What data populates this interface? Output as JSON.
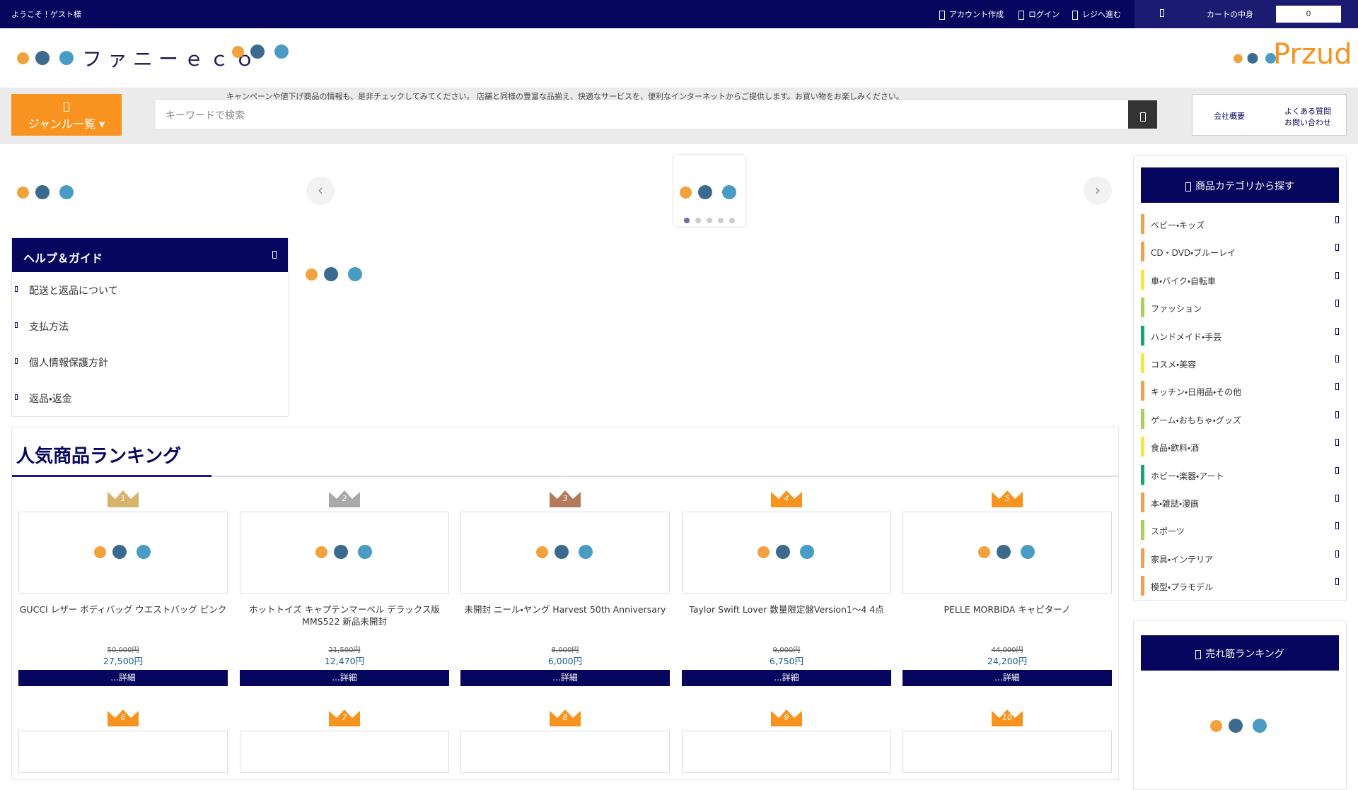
{
  "topbar": {
    "welcome": "ようこそ！ゲスト様",
    "links": [
      "アカウント作成",
      "ログイン",
      "レジへ進む"
    ],
    "cart_label": "カートの中身",
    "cart_count": "0"
  },
  "header": {
    "logo": "ファニーｅｃｏ",
    "brand": "Przud"
  },
  "notice": "キャンペーンや値下げ商品の情報も、是非チェックしてみてください。 店舗と同様の豊富な品揃え、快適なサービスを、便利なインターネットからご提供します。お買い物をお楽しみください。",
  "nav": {
    "genre": "ジャンル一覧",
    "search_placeholder": "キーワードで検索",
    "company": "会社概要",
    "faq": "よくある質問",
    "contact": "お問い合わせ"
  },
  "help": {
    "title": "ヘルプ＆ガイド",
    "items": [
      "配送と返品について",
      "支払方法",
      "個人情報保護方針",
      "返品・返金"
    ]
  },
  "ranking": {
    "title": "人気商品ランキング",
    "ranks": [
      "1",
      "2",
      "3",
      "4",
      "5",
      "6",
      "7",
      "8",
      "9",
      "10"
    ],
    "rank_colors": [
      "#d8b46a",
      "#a9a9a9",
      "#b5785a",
      "#f7931e",
      "#f7931e",
      "#f7931e",
      "#f7931e",
      "#f7931e",
      "#f7931e",
      "#f7931e"
    ],
    "products": [
      {
        "name": "GUCCI レザー ボディバッグ ウエストバッグ ピンク",
        "old_price": "50,000円",
        "price": "27,500円",
        "button": "...詳細"
      },
      {
        "name": "ホットトイズ キャプテンマーベル デラックス版 MMS522 新品未開封",
        "old_price": "21,500円",
        "price": "12,470円",
        "button": "...詳細"
      },
      {
        "name": "未開封 ニール・ヤング Harvest 50th Anniversary",
        "old_price": "8,000円",
        "price": "6,000円",
        "button": "...詳細"
      },
      {
        "name": "Taylor Swift Lover 数量限定盤Version1〜4 4点",
        "old_price": "9,000円",
        "price": "6,750円",
        "button": "...詳細"
      },
      {
        "name": "PELLE MORBIDA キャピターノ",
        "old_price": "44,000円",
        "price": "24,200円",
        "button": "...詳細"
      }
    ]
  },
  "sidebar": {
    "category_title": "商品カテゴリから探す",
    "categories": [
      {
        "label": "ベビー・キッズ",
        "color": "#f0a050"
      },
      {
        "label": "CD・DVD・ブルーレイ",
        "color": "#f0a050"
      },
      {
        "label": "車・バイク・自転車",
        "color": "#f5e642"
      },
      {
        "label": "ファッション",
        "color": "#a8d05a"
      },
      {
        "label": "ハンドメイド・手芸",
        "color": "#1aa56a"
      },
      {
        "label": "コスメ・美容",
        "color": "#f5e642"
      },
      {
        "label": "キッチン・日用品・その他",
        "color": "#f0a050"
      },
      {
        "label": "ゲーム・おもちゃ・グッズ",
        "color": "#a8d05a"
      },
      {
        "label": "食品・飲料・酒",
        "color": "#f5e642"
      },
      {
        "label": "ホビー・楽器・アート",
        "color": "#1aa56a"
      },
      {
        "label": "本・雑誌・漫画",
        "color": "#f0a050"
      },
      {
        "label": "スポーツ",
        "color": "#a8d05a"
      },
      {
        "label": "家具・インテリア",
        "color": "#f0a050"
      },
      {
        "label": "模型・プラモデル",
        "color": "#f0a050"
      }
    ],
    "bestseller_title": "売れ筋ランキング"
  }
}
